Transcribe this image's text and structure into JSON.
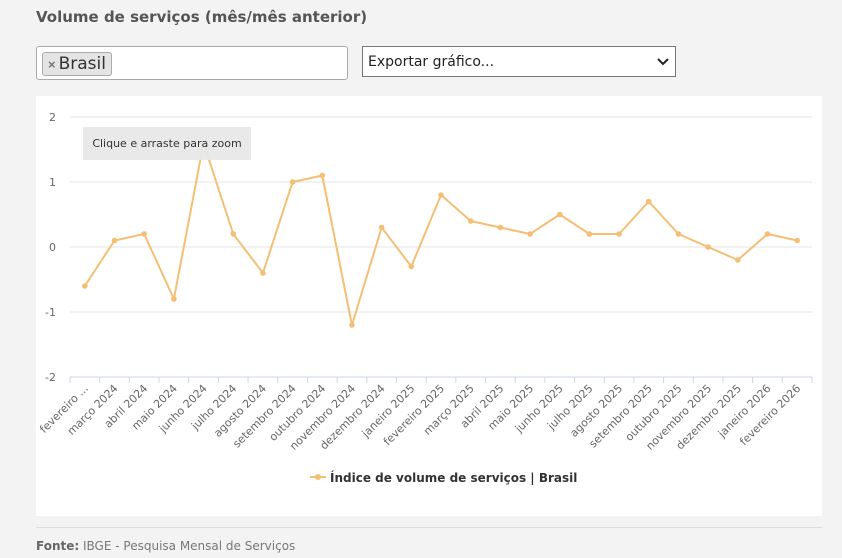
{
  "page": {
    "title": "Volume de serviços (mês/mês anterior)",
    "filter": {
      "tag_label": "Brasil",
      "remove_symbol": "×"
    },
    "export": {
      "label": "Exportar gráfico..."
    },
    "tooltip": "Clique e arraste para zoom",
    "footer": {
      "label": "Fonte:",
      "text": "IBGE - Pesquisa Mensal de Serviços"
    }
  },
  "chart_data": {
    "type": "line",
    "categories": [
      "fevereiro ...",
      "março 2024",
      "abril 2024",
      "maio 2024",
      "junho 2024",
      "julho 2024",
      "agosto 2024",
      "setembro 2024",
      "outubro 2024",
      "novembro 2024",
      "dezembro 2024",
      "janeiro 2025",
      "fevereiro 2025",
      "março 2025",
      "abril 2025",
      "maio 2025",
      "junho 2025",
      "julho 2025",
      "agosto 2025",
      "setembro 2025",
      "outubro 2025",
      "novembro 2025",
      "dezembro 2025",
      "janeiro 2026",
      "fevereiro 2026"
    ],
    "series": [
      {
        "name": "Índice de volume de serviços | Brasil",
        "values": [
          -0.6,
          0.1,
          0.2,
          -0.8,
          1.6,
          0.2,
          -0.4,
          1.0,
          1.1,
          -1.2,
          0.3,
          -0.3,
          0.8,
          0.4,
          0.3,
          0.2,
          0.5,
          0.2,
          0.2,
          0.7,
          0.2,
          0.0,
          -0.2,
          0.2,
          0.1
        ],
        "color": "#f4bf75"
      }
    ],
    "yticks": [
      "2",
      "1",
      "0",
      "-1",
      "-2"
    ],
    "ylim": [
      -2,
      2
    ],
    "grid": true,
    "legend": "bottom-center"
  }
}
